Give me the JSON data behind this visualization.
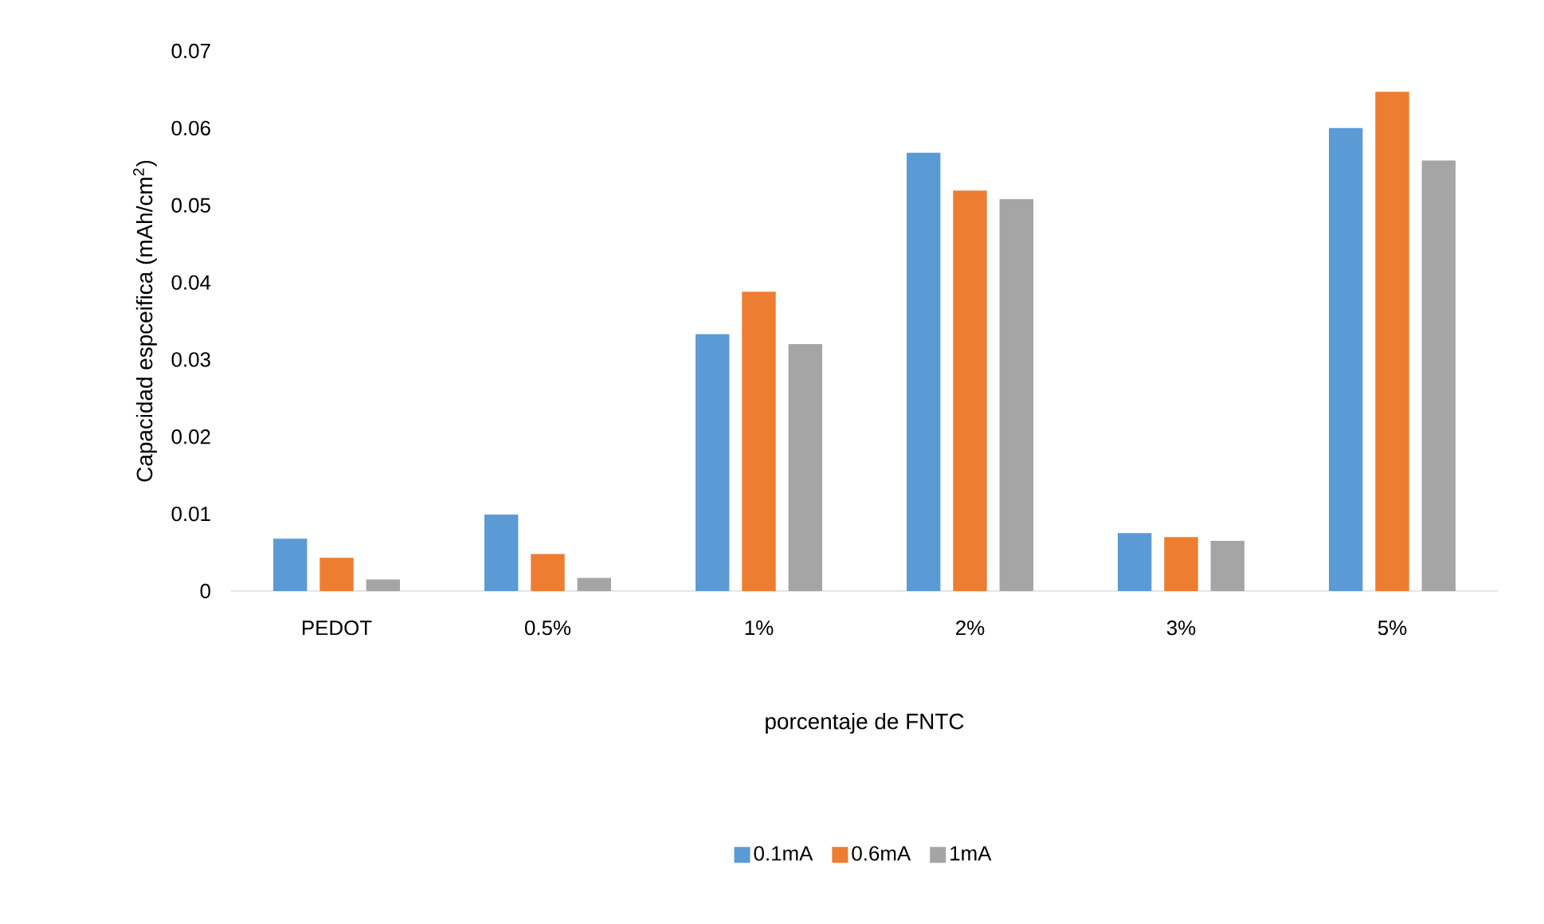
{
  "chart_data": {
    "type": "bar",
    "xlabel": "porcentaje de FNTC",
    "ylabel": "Capacidad espceifica (mAh/cm$^{2}$)",
    "categories": [
      "PEDOT",
      "0.5%",
      "1%",
      "2%",
      "3%",
      "5%"
    ],
    "series": [
      {
        "name": "0.1mA",
        "color": "#5b9bd5",
        "values": [
          0.0068,
          0.0099,
          0.0333,
          0.0568,
          0.0075,
          0.06
        ]
      },
      {
        "name": "0.6mA",
        "color": "#ed7d31",
        "values": [
          0.0043,
          0.0048,
          0.0388,
          0.0519,
          0.007,
          0.0647
        ]
      },
      {
        "name": "1mA",
        "color": "#a5a5a5",
        "values": [
          0.0015,
          0.0017,
          0.032,
          0.0508,
          0.0065,
          0.0558
        ]
      }
    ],
    "ylim": [
      0,
      0.07
    ],
    "yticks": [
      0,
      0.01,
      0.02,
      0.03,
      0.04,
      0.05,
      0.06,
      0.07
    ],
    "grid": false,
    "legend": "bottom"
  }
}
